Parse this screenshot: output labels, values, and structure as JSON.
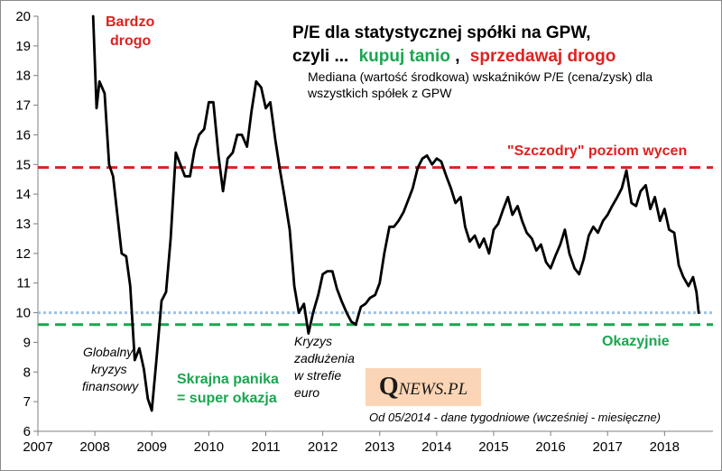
{
  "chart_data": {
    "type": "line",
    "title_line1": "P/E dla statystycznej spółki na GPW,",
    "title_line2_prefix": "czyli ...",
    "title_line2_buy": "kupuj tanio",
    "title_line2_sep": ",",
    "title_line2_sell": "sprzedawaj drogo",
    "subtitle_line1": "Mediana (wartość środkowa) wskaźników P/E (cena/zysk) dla",
    "subtitle_line2": "wszystkich spółek z GPW",
    "xlim": [
      2007,
      2018.85
    ],
    "ylim": [
      6,
      20
    ],
    "x_ticks": [
      2007,
      2008,
      2009,
      2010,
      2011,
      2012,
      2013,
      2014,
      2015,
      2016,
      2017,
      2018
    ],
    "y_ticks": [
      6,
      7,
      8,
      9,
      10,
      11,
      12,
      13,
      14,
      15,
      16,
      17,
      18,
      19,
      20
    ],
    "reference_lines": [
      {
        "name": "szczodry-line",
        "value": 14.9,
        "color": "#e02020",
        "style": "dashed"
      },
      {
        "name": "current-level-line",
        "value": 10.0,
        "color": "#9dc3e6",
        "style": "dotted"
      },
      {
        "name": "okazyjnie-line",
        "value": 9.6,
        "color": "#1aa650",
        "style": "dashed"
      }
    ],
    "series": [
      {
        "name": "Mediana P/E",
        "color": "#000000",
        "points": [
          [
            2007.97,
            20.0
          ],
          [
            2008.03,
            16.9
          ],
          [
            2008.08,
            17.8
          ],
          [
            2008.17,
            17.4
          ],
          [
            2008.25,
            15.0
          ],
          [
            2008.32,
            14.6
          ],
          [
            2008.4,
            13.2
          ],
          [
            2008.47,
            12.0
          ],
          [
            2008.55,
            11.9
          ],
          [
            2008.62,
            10.9
          ],
          [
            2008.7,
            8.4
          ],
          [
            2008.78,
            8.8
          ],
          [
            2008.86,
            8.1
          ],
          [
            2008.93,
            7.1
          ],
          [
            2009.0,
            6.7
          ],
          [
            2009.08,
            8.4
          ],
          [
            2009.17,
            10.4
          ],
          [
            2009.25,
            10.7
          ],
          [
            2009.33,
            12.5
          ],
          [
            2009.42,
            15.4
          ],
          [
            2009.5,
            15.0
          ],
          [
            2009.58,
            14.6
          ],
          [
            2009.67,
            14.6
          ],
          [
            2009.75,
            15.5
          ],
          [
            2009.83,
            16.0
          ],
          [
            2009.92,
            16.2
          ],
          [
            2010.0,
            17.1
          ],
          [
            2010.08,
            17.1
          ],
          [
            2010.17,
            15.3
          ],
          [
            2010.25,
            14.1
          ],
          [
            2010.33,
            15.2
          ],
          [
            2010.42,
            15.4
          ],
          [
            2010.5,
            16.0
          ],
          [
            2010.58,
            16.0
          ],
          [
            2010.67,
            15.6
          ],
          [
            2010.75,
            16.8
          ],
          [
            2010.83,
            17.8
          ],
          [
            2010.92,
            17.6
          ],
          [
            2011.0,
            16.9
          ],
          [
            2011.08,
            17.1
          ],
          [
            2011.17,
            15.8
          ],
          [
            2011.25,
            14.8
          ],
          [
            2011.33,
            13.9
          ],
          [
            2011.42,
            12.8
          ],
          [
            2011.5,
            10.9
          ],
          [
            2011.58,
            10.0
          ],
          [
            2011.67,
            10.3
          ],
          [
            2011.75,
            9.3
          ],
          [
            2011.83,
            10.0
          ],
          [
            2011.92,
            10.6
          ],
          [
            2012.0,
            11.3
          ],
          [
            2012.08,
            11.4
          ],
          [
            2012.17,
            11.4
          ],
          [
            2012.25,
            10.8
          ],
          [
            2012.33,
            10.4
          ],
          [
            2012.42,
            10.0
          ],
          [
            2012.5,
            9.7
          ],
          [
            2012.58,
            9.6
          ],
          [
            2012.67,
            10.2
          ],
          [
            2012.75,
            10.3
          ],
          [
            2012.83,
            10.5
          ],
          [
            2012.92,
            10.6
          ],
          [
            2013.0,
            11.0
          ],
          [
            2013.08,
            12.0
          ],
          [
            2013.17,
            12.9
          ],
          [
            2013.25,
            12.9
          ],
          [
            2013.33,
            13.1
          ],
          [
            2013.42,
            13.4
          ],
          [
            2013.5,
            13.8
          ],
          [
            2013.58,
            14.2
          ],
          [
            2013.67,
            14.9
          ],
          [
            2013.75,
            15.2
          ],
          [
            2013.83,
            15.3
          ],
          [
            2013.92,
            15.0
          ],
          [
            2014.0,
            15.2
          ],
          [
            2014.08,
            15.1
          ],
          [
            2014.17,
            14.6
          ],
          [
            2014.25,
            14.2
          ],
          [
            2014.33,
            13.7
          ],
          [
            2014.42,
            13.9
          ],
          [
            2014.5,
            12.9
          ],
          [
            2014.58,
            12.4
          ],
          [
            2014.67,
            12.6
          ],
          [
            2014.75,
            12.2
          ],
          [
            2014.83,
            12.5
          ],
          [
            2014.92,
            12.0
          ],
          [
            2015.0,
            12.8
          ],
          [
            2015.08,
            13.0
          ],
          [
            2015.17,
            13.5
          ],
          [
            2015.25,
            13.9
          ],
          [
            2015.33,
            13.3
          ],
          [
            2015.42,
            13.6
          ],
          [
            2015.5,
            13.1
          ],
          [
            2015.58,
            12.7
          ],
          [
            2015.67,
            12.5
          ],
          [
            2015.75,
            12.1
          ],
          [
            2015.83,
            12.3
          ],
          [
            2015.92,
            11.7
          ],
          [
            2016.0,
            11.5
          ],
          [
            2016.08,
            11.9
          ],
          [
            2016.17,
            12.3
          ],
          [
            2016.25,
            12.8
          ],
          [
            2016.33,
            12.0
          ],
          [
            2016.42,
            11.5
          ],
          [
            2016.5,
            11.3
          ],
          [
            2016.58,
            11.8
          ],
          [
            2016.67,
            12.6
          ],
          [
            2016.75,
            12.9
          ],
          [
            2016.83,
            12.7
          ],
          [
            2016.92,
            13.1
          ],
          [
            2017.0,
            13.3
          ],
          [
            2017.08,
            13.6
          ],
          [
            2017.17,
            13.9
          ],
          [
            2017.25,
            14.2
          ],
          [
            2017.33,
            14.8
          ],
          [
            2017.42,
            13.7
          ],
          [
            2017.5,
            13.6
          ],
          [
            2017.58,
            14.1
          ],
          [
            2017.67,
            14.3
          ],
          [
            2017.75,
            13.5
          ],
          [
            2017.83,
            13.9
          ],
          [
            2017.92,
            13.1
          ],
          [
            2018.0,
            13.5
          ],
          [
            2018.08,
            12.8
          ],
          [
            2018.17,
            12.7
          ],
          [
            2018.25,
            11.6
          ],
          [
            2018.33,
            11.2
          ],
          [
            2018.42,
            10.9
          ],
          [
            2018.5,
            11.2
          ],
          [
            2018.56,
            10.7
          ],
          [
            2018.6,
            10.0
          ]
        ]
      }
    ],
    "annotations": {
      "bardzo_drogo_line1": "Bardzo",
      "bardzo_drogo_line2": "drogo",
      "szczodry": "\"Szczodry\" poziom wycen",
      "okazyjnie": "Okazyjnie",
      "crisis1_line1": "Globalny",
      "crisis1_line2": "kryzys",
      "crisis1_line3": "finansowy",
      "panika_line1": "Skrajna panika",
      "panika_line2": "= super okazja",
      "crisis2_line1": "Kryzys",
      "crisis2_line2": "zadłużenia",
      "crisis2_line3": "w strefie",
      "crisis2_line4": "euro",
      "footnote": "Od 05/2014 - dane tygodniowe (wcześniej - miesięczne)"
    }
  },
  "logo": {
    "q": "Q",
    "rest": "NEWS.PL"
  },
  "colors": {
    "red": "#e02020",
    "green": "#1aa650",
    "blue_dotted": "#9dc3e6",
    "axis": "#7f7f7f",
    "logo_bg": "#fbd5b5"
  }
}
